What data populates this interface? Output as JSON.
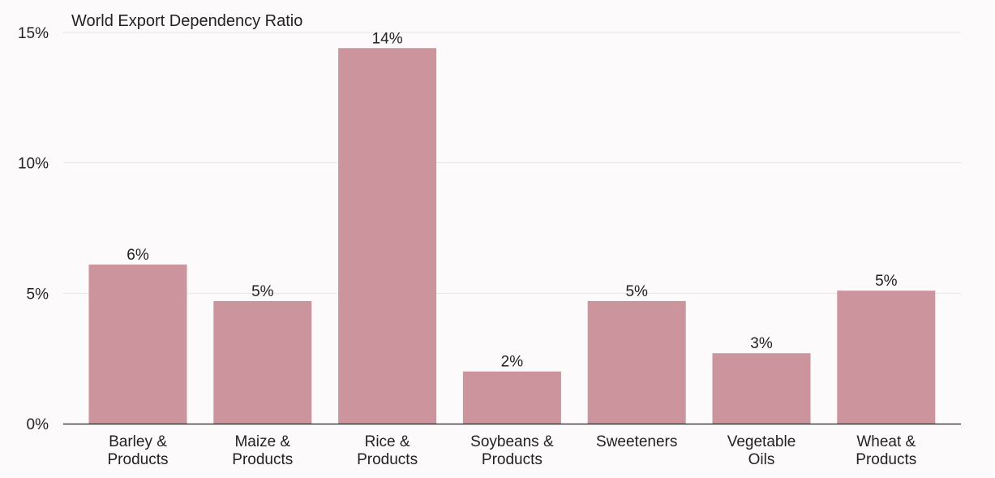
{
  "chart_data": {
    "type": "bar",
    "title": "World Export Dependency Ratio",
    "categories": [
      [
        "Barley &",
        "Products"
      ],
      [
        "Maize &",
        "Products"
      ],
      [
        "Rice &",
        "Products"
      ],
      [
        "Soybeans &",
        "Products"
      ],
      [
        "Sweeteners"
      ],
      [
        "Vegetable",
        "Oils"
      ],
      [
        "Wheat &",
        "Products"
      ]
    ],
    "values": [
      6.1,
      4.7,
      14.4,
      2.0,
      4.7,
      2.7,
      5.1
    ],
    "value_labels": [
      "6%",
      "5%",
      "14%",
      "2%",
      "5%",
      "3%",
      "5%"
    ],
    "ylim": [
      0,
      15
    ],
    "yticks": [
      0,
      5,
      10,
      15
    ],
    "ytick_labels": [
      "0%",
      "5%",
      "10%",
      "15%"
    ],
    "grid": true,
    "legend": "none",
    "colors": {
      "bar": "#cc949d",
      "grid": "#e6e6e6",
      "axis": "#222222",
      "background": "#fcfafb"
    }
  }
}
